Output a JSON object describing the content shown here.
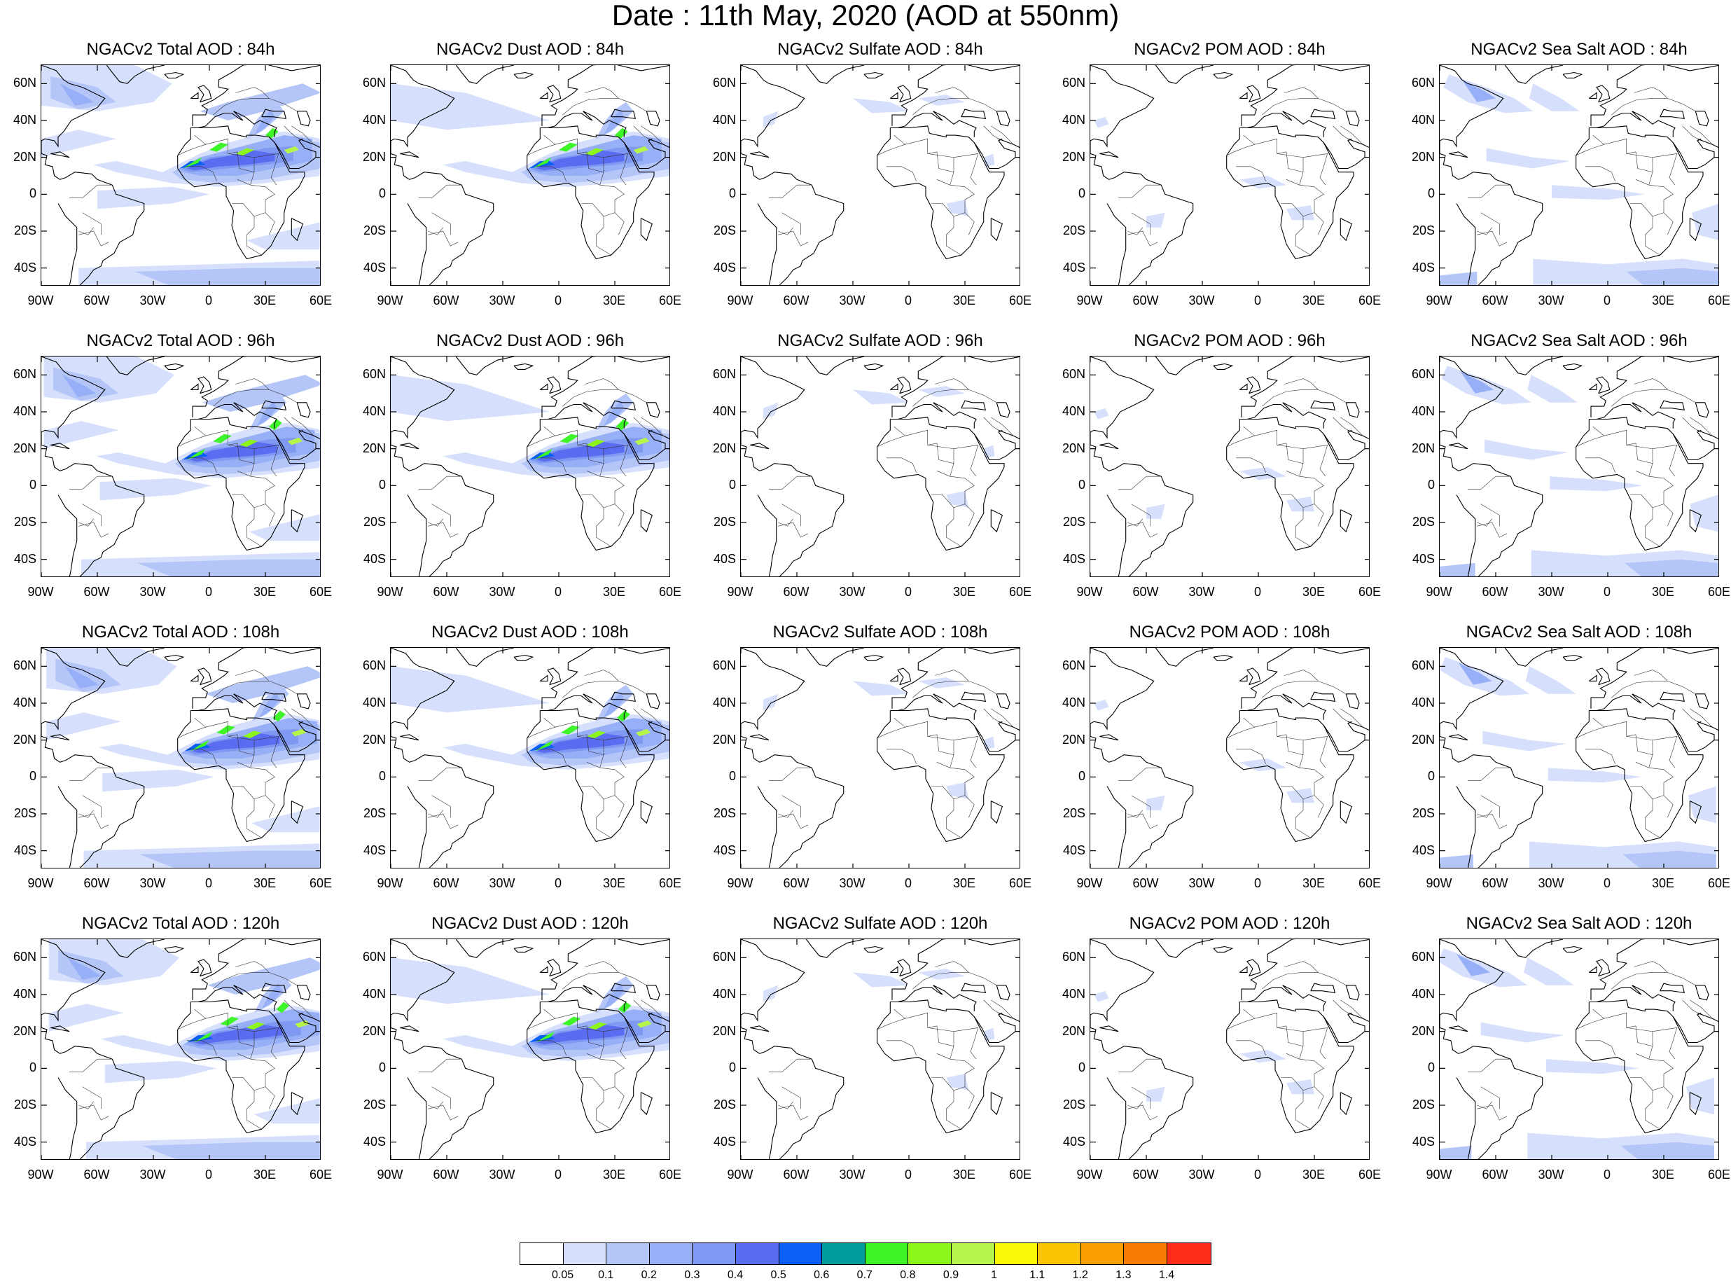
{
  "title": "Date : 11th May, 2020 (AOD at 550nm)",
  "panels": [
    {
      "title": "NGACv2 Total AOD : 84h",
      "species": "total",
      "hour": 84
    },
    {
      "title": "NGACv2 Dust AOD : 84h",
      "species": "dust",
      "hour": 84
    },
    {
      "title": "NGACv2 Sulfate AOD : 84h",
      "species": "sulfate",
      "hour": 84
    },
    {
      "title": "NGACv2 POM AOD : 84h",
      "species": "pom",
      "hour": 84
    },
    {
      "title": "NGACv2 Sea Salt AOD : 84h",
      "species": "seasalt",
      "hour": 84
    },
    {
      "title": "NGACv2 Total AOD : 96h",
      "species": "total",
      "hour": 96
    },
    {
      "title": "NGACv2 Dust AOD : 96h",
      "species": "dust",
      "hour": 96
    },
    {
      "title": "NGACv2 Sulfate AOD : 96h",
      "species": "sulfate",
      "hour": 96
    },
    {
      "title": "NGACv2 POM AOD : 96h",
      "species": "pom",
      "hour": 96
    },
    {
      "title": "NGACv2 Sea Salt AOD : 96h",
      "species": "seasalt",
      "hour": 96
    },
    {
      "title": "NGACv2 Total AOD : 108h",
      "species": "total",
      "hour": 108
    },
    {
      "title": "NGACv2 Dust AOD : 108h",
      "species": "dust",
      "hour": 108
    },
    {
      "title": "NGACv2 Sulfate AOD : 108h",
      "species": "sulfate",
      "hour": 108
    },
    {
      "title": "NGACv2 POM AOD : 108h",
      "species": "pom",
      "hour": 108
    },
    {
      "title": "NGACv2 Sea Salt AOD : 108h",
      "species": "seasalt",
      "hour": 108
    },
    {
      "title": "NGACv2 Total AOD : 120h",
      "species": "total",
      "hour": 120
    },
    {
      "title": "NGACv2 Dust AOD : 120h",
      "species": "dust",
      "hour": 120
    },
    {
      "title": "NGACv2 Sulfate AOD : 120h",
      "species": "sulfate",
      "hour": 120
    },
    {
      "title": "NGACv2 POM AOD : 120h",
      "species": "pom",
      "hour": 120
    },
    {
      "title": "NGACv2 Sea Salt  AOD : 120h",
      "species": "seasalt",
      "hour": 120
    }
  ],
  "lat_ticks": [
    "60N",
    "40N",
    "20N",
    "0",
    "20S",
    "40S"
  ],
  "lon_ticks": [
    "90W",
    "60W",
    "30W",
    "0",
    "30E",
    "60E"
  ],
  "map_extent": {
    "lon": [
      -90,
      60
    ],
    "lat": [
      -50,
      70
    ]
  },
  "colorbar": {
    "colors": [
      "#ffffff",
      "#d6dffb",
      "#b4c5f8",
      "#96aff6",
      "#7f99f3",
      "#5a6cf0",
      "#0a5ff5",
      "#009b9b",
      "#3ef52a",
      "#8cf51a",
      "#b8f54a",
      "#f9f905",
      "#fac304",
      "#fa9f02",
      "#f97d04",
      "#fb2d18"
    ],
    "labels": [
      "0.05",
      "0.1",
      "0.2",
      "0.3",
      "0.4",
      "0.5",
      "0.6",
      "0.7",
      "0.8",
      "0.9",
      "1",
      "1.1",
      "1.2",
      "1.3",
      "1.4"
    ]
  }
}
